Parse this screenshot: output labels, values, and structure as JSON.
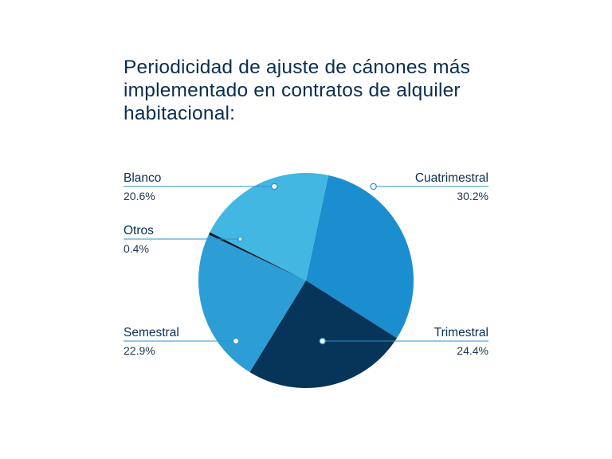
{
  "chart_data": {
    "type": "pie",
    "title": "Periodicidad de ajuste de cánones más implementado en contratos de alquiler habitacional:",
    "slices": [
      {
        "label": "Cuatrimestral",
        "value": 30.2,
        "value_label": "30.2%",
        "color": "#1b8ed0"
      },
      {
        "label": "Trimestral",
        "value": 24.4,
        "value_label": "24.4%",
        "color": "#073459"
      },
      {
        "label": "Semestral",
        "value": 22.9,
        "value_label": "22.9%",
        "color": "#2d9dd6"
      },
      {
        "label": "Otros",
        "value": 0.4,
        "value_label": "0.4%",
        "color": "#111d2e"
      },
      {
        "label": "Blanco",
        "value": 20.6,
        "value_label": "20.6%",
        "color": "#41b7e2"
      }
    ],
    "label_line_color": "#2f8fcf",
    "label_placement": {
      "Blanco": "left",
      "Otros": "left",
      "Semestral": "left",
      "Cuatrimestral": "right",
      "Trimestral": "right"
    }
  }
}
